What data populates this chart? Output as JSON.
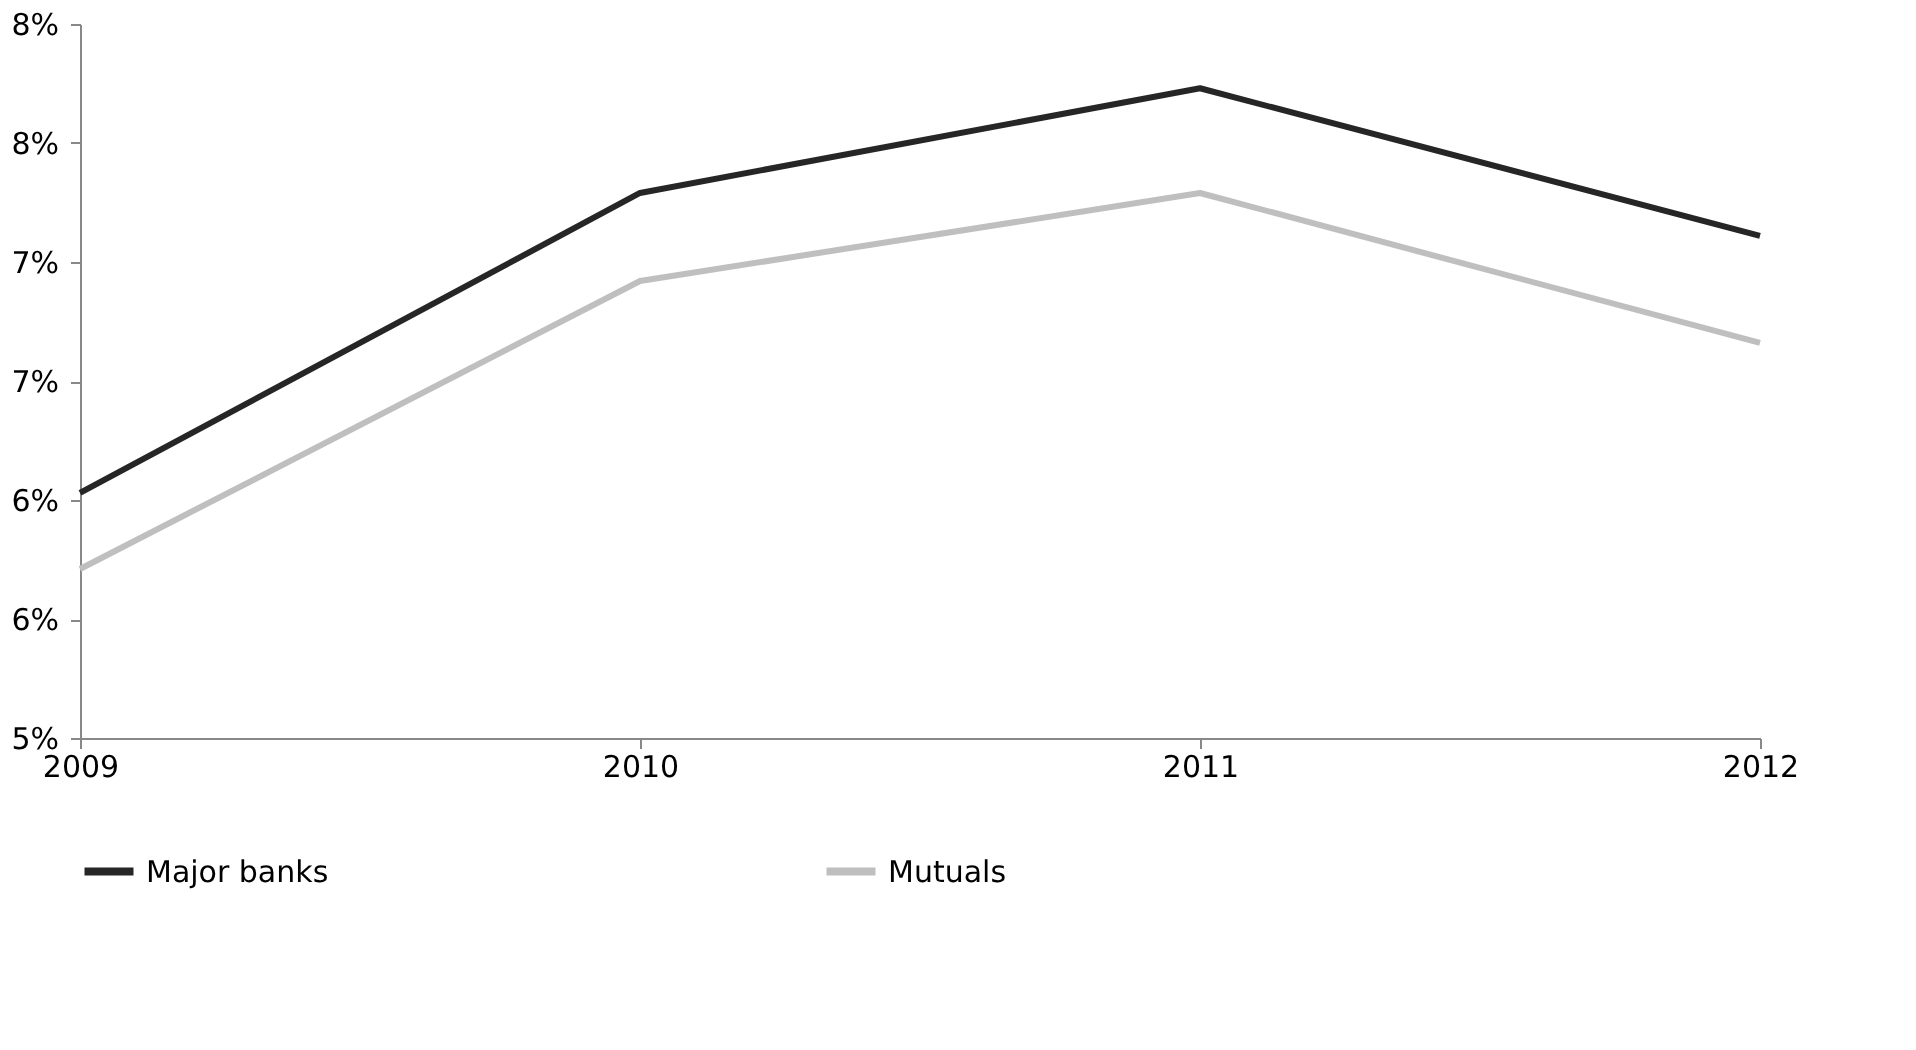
{
  "chart_data": {
    "type": "line",
    "x": [
      2009,
      2010,
      2011,
      2012
    ],
    "xlim": [
      2009,
      2012
    ],
    "xticks": [
      2009,
      2010,
      2011,
      2012
    ],
    "ylim": [
      5,
      8
    ],
    "yticks": [
      {
        "value": 5,
        "label": "5%"
      },
      {
        "value": 5.5,
        "label": "6%"
      },
      {
        "value": 6,
        "label": "6%"
      },
      {
        "value": 6.5,
        "label": "7%"
      },
      {
        "value": 7,
        "label": "7%"
      },
      {
        "value": 7.5,
        "label": "8%"
      },
      {
        "value": 8,
        "label": "8%"
      }
    ],
    "series": [
      {
        "name": "Major banks",
        "color": "#262626",
        "values": [
          6.03,
          7.29,
          7.73,
          7.11
        ]
      },
      {
        "name": "Mutuals",
        "color": "#bfbfbf",
        "values": [
          5.71,
          6.92,
          7.29,
          6.66
        ]
      }
    ],
    "grid": false,
    "legend": "bottom",
    "marker": "none",
    "line_style": "solid"
  }
}
